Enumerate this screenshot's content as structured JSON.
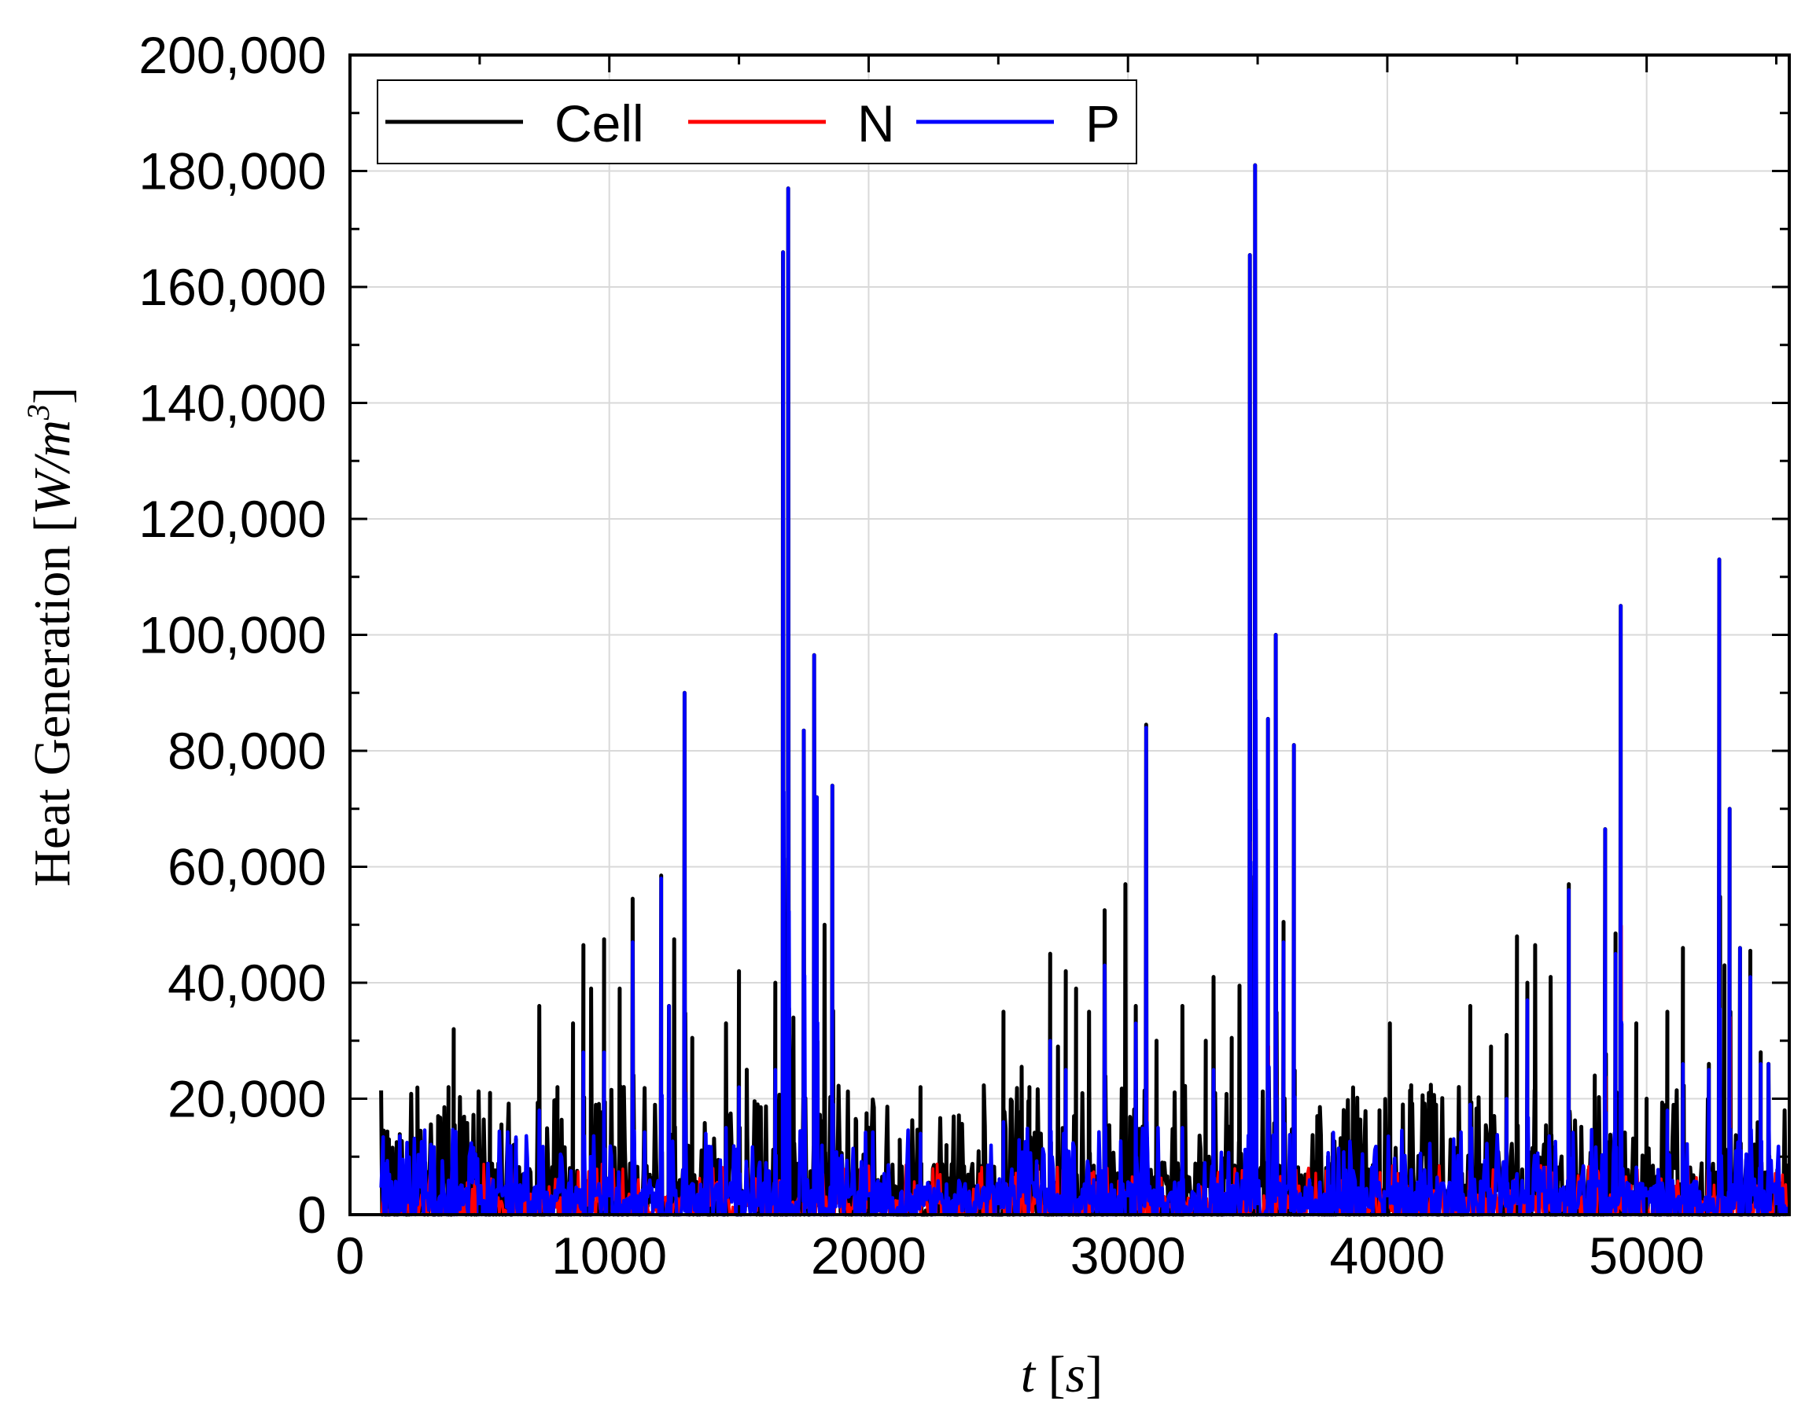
{
  "chart_data": {
    "type": "line",
    "title": "",
    "xlabel": {
      "var": "t",
      "unit": "s"
    },
    "ylabel": {
      "text": "Heat Generation",
      "unit_base": "W/m",
      "unit_exp": "3"
    },
    "xlim": [
      0,
      5550
    ],
    "ylim": [
      0,
      200000
    ],
    "x_ticks": [
      "0",
      "1000",
      "2000",
      "3000",
      "4000",
      "5000"
    ],
    "x_tick_values": [
      0,
      1000,
      2000,
      3000,
      4000,
      5000
    ],
    "y_ticks": [
      "0",
      "20,000",
      "40,000",
      "60,000",
      "80,000",
      "100,000",
      "120,000",
      "140,000",
      "160,000",
      "180,000",
      "200,000"
    ],
    "y_tick_values": [
      0,
      20000,
      40000,
      60000,
      80000,
      100000,
      120000,
      140000,
      160000,
      180000,
      200000
    ],
    "grid": true,
    "legend": "top-left",
    "series": [
      {
        "name": "Cell",
        "color": "#000000",
        "peaks": [
          [
            130,
            14500
          ],
          [
            150,
            13000
          ],
          [
            180,
            12500
          ],
          [
            260,
            7000
          ],
          [
            290,
            9000
          ],
          [
            340,
            17000
          ],
          [
            380,
            22000
          ],
          [
            400,
            32000
          ],
          [
            460,
            7000
          ],
          [
            540,
            21000
          ],
          [
            640,
            13000
          ],
          [
            730,
            36000
          ],
          [
            800,
            22000
          ],
          [
            860,
            33000
          ],
          [
            900,
            46500
          ],
          [
            930,
            39000
          ],
          [
            980,
            47500
          ],
          [
            1040,
            39000
          ],
          [
            1090,
            54500
          ],
          [
            1200,
            58500
          ],
          [
            1230,
            36000
          ],
          [
            1250,
            47500
          ],
          [
            1290,
            90000
          ],
          [
            1320,
            30500
          ],
          [
            1450,
            33000
          ],
          [
            1500,
            42000
          ],
          [
            1530,
            25000
          ],
          [
            1640,
            40000
          ],
          [
            1670,
            166000
          ],
          [
            1690,
            177000
          ],
          [
            1710,
            34000
          ],
          [
            1750,
            83500
          ],
          [
            1790,
            96500
          ],
          [
            1800,
            72000
          ],
          [
            1830,
            50000
          ],
          [
            1860,
            74000
          ],
          [
            1950,
            16500
          ],
          [
            2000,
            15000
          ],
          [
            2120,
            10000
          ],
          [
            2200,
            22000
          ],
          [
            2300,
            12000
          ],
          [
            2440,
            8500
          ],
          [
            2520,
            35000
          ],
          [
            2590,
            25500
          ],
          [
            2620,
            22000
          ],
          [
            2700,
            45000
          ],
          [
            2730,
            29000
          ],
          [
            2760,
            42000
          ],
          [
            2800,
            39000
          ],
          [
            2850,
            35000
          ],
          [
            2910,
            52500
          ],
          [
            2990,
            57000
          ],
          [
            3030,
            36000
          ],
          [
            3070,
            84500
          ],
          [
            3110,
            30000
          ],
          [
            3210,
            36000
          ],
          [
            3300,
            30000
          ],
          [
            3330,
            41000
          ],
          [
            3400,
            30500
          ],
          [
            3430,
            39500
          ],
          [
            3470,
            165500
          ],
          [
            3490,
            181000
          ],
          [
            3540,
            85500
          ],
          [
            3570,
            100000
          ],
          [
            3600,
            50500
          ],
          [
            3640,
            81000
          ],
          [
            3730,
            17000
          ],
          [
            3790,
            14000
          ],
          [
            3900,
            12000
          ],
          [
            3970,
            18000
          ],
          [
            4010,
            33000
          ],
          [
            4090,
            9000
          ],
          [
            4160,
            21000
          ],
          [
            4320,
            36000
          ],
          [
            4400,
            29000
          ],
          [
            4460,
            31000
          ],
          [
            4500,
            48000
          ],
          [
            4540,
            40000
          ],
          [
            4570,
            46500
          ],
          [
            4630,
            41000
          ],
          [
            4700,
            57000
          ],
          [
            4800,
            24000
          ],
          [
            4840,
            66500
          ],
          [
            4880,
            48500
          ],
          [
            4900,
            105000
          ],
          [
            4960,
            33000
          ],
          [
            5000,
            20000
          ],
          [
            5080,
            35000
          ],
          [
            5140,
            46000
          ],
          [
            5240,
            26000
          ],
          [
            5280,
            113000
          ],
          [
            5300,
            43000
          ],
          [
            5320,
            70000
          ],
          [
            5360,
            46000
          ],
          [
            5400,
            45500
          ],
          [
            5440,
            28000
          ],
          [
            5470,
            26000
          ],
          [
            5500,
            4000
          ]
        ]
      },
      {
        "name": "N",
        "color": "#ff0000",
        "peaks": [
          [
            1200,
            57000
          ],
          [
            1290,
            89000
          ],
          [
            1670,
            165000
          ],
          [
            1690,
            176000
          ],
          [
            1750,
            83000
          ],
          [
            1790,
            96000
          ],
          [
            1860,
            73000
          ],
          [
            3070,
            84000
          ],
          [
            3470,
            165000
          ],
          [
            3490,
            180500
          ],
          [
            3540,
            85000
          ],
          [
            3570,
            99500
          ],
          [
            3640,
            80500
          ],
          [
            4840,
            66000
          ],
          [
            4900,
            104500
          ],
          [
            5280,
            112500
          ],
          [
            5320,
            69500
          ],
          [
            5360,
            45500
          ],
          [
            5440,
            9000
          ]
        ]
      },
      {
        "name": "P",
        "color": "#0000ff",
        "peaks": [
          [
            130,
            2000
          ],
          [
            400,
            14000
          ],
          [
            730,
            18000
          ],
          [
            900,
            28000
          ],
          [
            980,
            28000
          ],
          [
            1090,
            47000
          ],
          [
            1200,
            58000
          ],
          [
            1230,
            36000
          ],
          [
            1290,
            90000
          ],
          [
            1450,
            15000
          ],
          [
            1500,
            22000
          ],
          [
            1640,
            25000
          ],
          [
            1670,
            166000
          ],
          [
            1690,
            177000
          ],
          [
            1750,
            83500
          ],
          [
            1790,
            96500
          ],
          [
            1800,
            72000
          ],
          [
            1860,
            74000
          ],
          [
            2200,
            14000
          ],
          [
            2520,
            16000
          ],
          [
            2700,
            30000
          ],
          [
            2760,
            25000
          ],
          [
            2910,
            43000
          ],
          [
            3030,
            33000
          ],
          [
            3070,
            84000
          ],
          [
            3210,
            15000
          ],
          [
            3330,
            25000
          ],
          [
            3470,
            165500
          ],
          [
            3490,
            181000
          ],
          [
            3540,
            85500
          ],
          [
            3570,
            100000
          ],
          [
            3600,
            47000
          ],
          [
            3640,
            81000
          ],
          [
            4320,
            19000
          ],
          [
            4460,
            20000
          ],
          [
            4540,
            37000
          ],
          [
            4700,
            56000
          ],
          [
            4840,
            66500
          ],
          [
            4880,
            45000
          ],
          [
            4900,
            105000
          ],
          [
            5080,
            18000
          ],
          [
            5140,
            26000
          ],
          [
            5240,
            25000
          ],
          [
            5280,
            113000
          ],
          [
            5320,
            70000
          ],
          [
            5360,
            46000
          ],
          [
            5400,
            41000
          ],
          [
            5440,
            26000
          ],
          [
            5470,
            26000
          ]
        ]
      }
    ]
  }
}
